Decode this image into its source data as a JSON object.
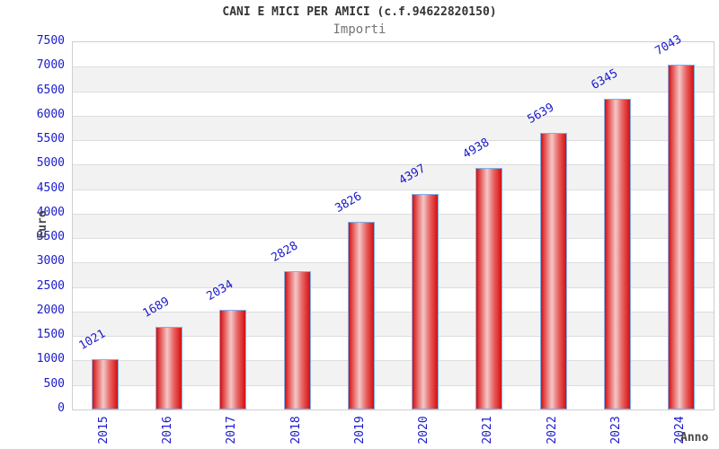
{
  "header": {
    "title": "CANI E MICI PER AMICI (c.f.94622820150)",
    "subtitle": "Importi"
  },
  "chart_data": {
    "type": "bar",
    "categories": [
      "2015",
      "2016",
      "2017",
      "2018",
      "2019",
      "2020",
      "2021",
      "2022",
      "2023",
      "2024"
    ],
    "values": [
      1021,
      1689,
      2034,
      2828,
      3826,
      4397,
      4938,
      5639,
      6345,
      7043
    ],
    "title": "CANI E MICI PER AMICI (c.f.94622820150)",
    "subtitle": "Importi",
    "xlabel": "Anno",
    "ylabel": "Euro",
    "ylim": [
      0,
      7500
    ],
    "ytick_step": 500,
    "grid": "alternating-horizontal-bands",
    "legend": "none",
    "bar_value_labels": [
      1021,
      1689,
      2034,
      2828,
      3826,
      4397,
      4938,
      5639,
      6345,
      7043
    ]
  },
  "colors": {
    "tick_label": "#1a1acc",
    "value_label": "#1a1acc",
    "bar_border": "#7cb0e8",
    "bar_red_dark": "#d50f0f",
    "bar_red_mid": "#e96666",
    "bar_red_light": "#f3c7c7",
    "band_gray": "#f2f2f2",
    "band_white": "#ffffff",
    "grid_line": "#dddddd",
    "axis_title": "#484848",
    "title": "#333333",
    "subtitle": "#757575"
  }
}
